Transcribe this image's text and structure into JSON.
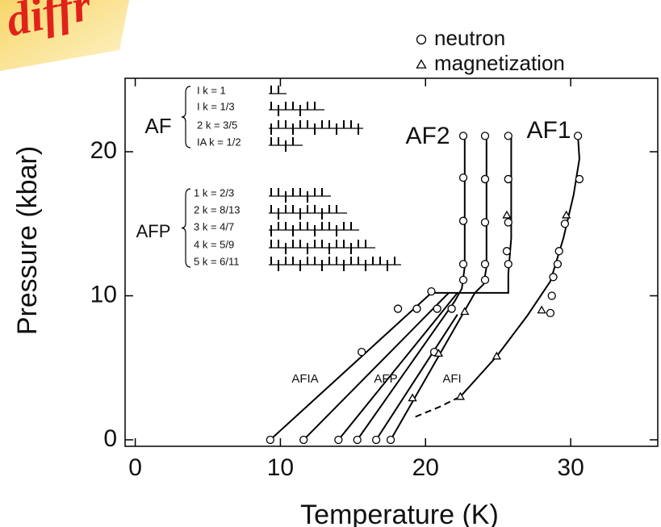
{
  "chart_data": {
    "type": "scatter",
    "watermark": "diffr",
    "xlabel": "Temperature (K)",
    "ylabel": "Pressure (kbar)",
    "xlim": [
      -0.7,
      36
    ],
    "ylim": [
      -0.45,
      25.1
    ],
    "xticks": [
      0,
      10,
      20,
      30
    ],
    "yticks": [
      0,
      10,
      20
    ],
    "series": [
      {
        "name": "neutron",
        "marker": "circle",
        "color": "#000000",
        "x": [
          9.3,
          11.6,
          14.0,
          15.3,
          16.6,
          17.6,
          15.6,
          18.1,
          19.4,
          20.4,
          20.8,
          21.8,
          20.6,
          22.6,
          22.6,
          22.6,
          22.6,
          22.6,
          24.1,
          24.1,
          24.1,
          24.1,
          24.1,
          25.7,
          25.7,
          25.7,
          25.6,
          25.7,
          30.5,
          30.6,
          29.6,
          29.2,
          29.1,
          28.8,
          28.6,
          28.7
        ],
        "y": [
          0,
          0,
          0,
          0,
          0,
          0,
          6.1,
          9.1,
          9.1,
          10.3,
          9.1,
          9.1,
          6.1,
          21.1,
          18.2,
          15.2,
          12.2,
          11.1,
          21.1,
          18.1,
          15.1,
          12.2,
          11.1,
          21.1,
          18.1,
          15.1,
          13.1,
          12.2,
          21.1,
          18.1,
          15.0,
          13.1,
          12.2,
          11.3,
          8.8,
          10.0
        ]
      },
      {
        "name": "magnetization",
        "marker": "triangle",
        "color": "#000000",
        "x": [
          19.1,
          22.4,
          24.9,
          28.0,
          22.7,
          20.9,
          25.6,
          29.7
        ],
        "y": [
          2.9,
          3.0,
          5.8,
          9.0,
          8.9,
          6.0,
          15.6,
          15.6
        ]
      }
    ],
    "boundaries": [
      {
        "style": "solid",
        "x": [
          9.3,
          20.4,
          25.7,
          25.7,
          25.9,
          25.9
        ],
        "y": [
          0,
          10.2,
          10.2,
          11.5,
          14,
          21.1
        ]
      },
      {
        "style": "solid",
        "x": [
          11.6,
          21.6
        ],
        "y": [
          0,
          10.2
        ]
      },
      {
        "style": "solid",
        "x": [
          14.0,
          22.2
        ],
        "y": [
          0,
          10.2
        ]
      },
      {
        "style": "solid",
        "x": [
          15.3,
          22.0,
          22.5,
          22.7,
          22.7
        ],
        "y": [
          0,
          9.6,
          10.5,
          12,
          21.1
        ]
      },
      {
        "style": "solid",
        "x": [
          16.6,
          22.2
        ],
        "y": [
          0,
          8.7
        ]
      },
      {
        "style": "solid",
        "x": [
          17.6,
          23.4,
          24.0,
          24.2,
          24.2
        ],
        "y": [
          0,
          10.2,
          10.8,
          12,
          21.1
        ]
      },
      {
        "style": "solid",
        "x": [
          22.4,
          24.9,
          27.0,
          28.6,
          29.5,
          30.2,
          30.6,
          30.5
        ],
        "y": [
          3.0,
          5.8,
          8.6,
          11.0,
          14.0,
          17.0,
          19.5,
          21.1
        ]
      },
      {
        "style": "dashed",
        "x": [
          19.3,
          21.0,
          22.4
        ],
        "y": [
          1.6,
          2.3,
          3.0
        ]
      }
    ],
    "annotations": [
      "AF2",
      "AF1",
      "AFIA",
      "AFP",
      "AFI"
    ],
    "inset": [
      {
        "label": "AF",
        "rows": [
          "I k = 1",
          "I k = 1/3",
          "2 k = 3/5",
          "IA k = 1/2"
        ]
      },
      {
        "label": "AFP",
        "rows": [
          "1 k = 2/3",
          "2 k = 8/13",
          "3 k = 4/7",
          "4 k = 5/9",
          "5 k = 6/11"
        ]
      }
    ]
  }
}
